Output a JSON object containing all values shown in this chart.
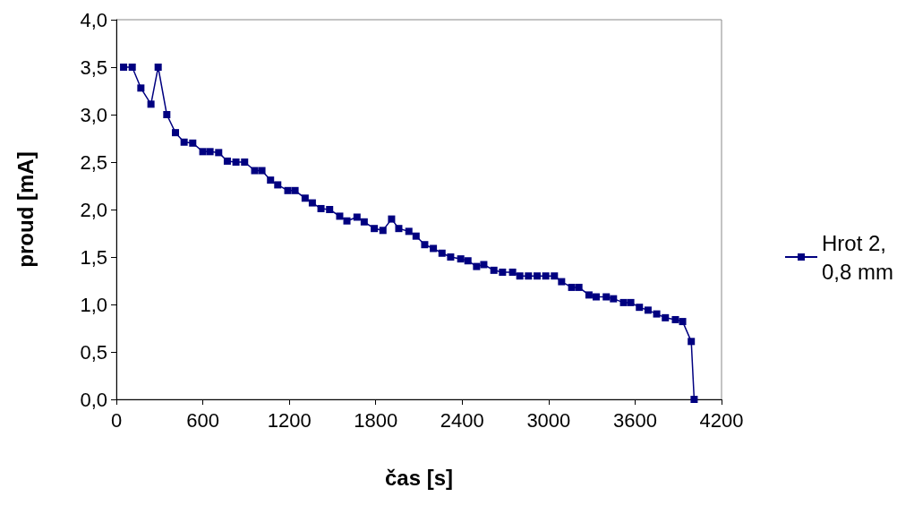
{
  "chart_data": {
    "type": "line",
    "xlabel": "čas [s]",
    "ylabel": "proud [mA]",
    "xlim": [
      0,
      4200
    ],
    "xticks": [
      0,
      600,
      1200,
      1800,
      2400,
      3000,
      3600,
      4200
    ],
    "ylim": [
      0,
      4
    ],
    "yticks": [
      {
        "value": 0,
        "label": "0,0"
      },
      {
        "value": 0.5,
        "label": "0,5"
      },
      {
        "value": 1,
        "label": "1,0"
      },
      {
        "value": 1.5,
        "label": "1,5"
      },
      {
        "value": 2,
        "label": "2,0"
      },
      {
        "value": 2.5,
        "label": "2,5"
      },
      {
        "value": 3,
        "label": "3,0"
      },
      {
        "value": 3.5,
        "label": "3,5"
      },
      {
        "value": 4,
        "label": "4,0"
      }
    ],
    "grid": false,
    "legend": "right",
    "marker": "square",
    "line_style": "solid",
    "series": [
      {
        "name": "Hrot 2, 0,8 mm",
        "color": "#000080",
        "x": [
          50,
          110,
          170,
          240,
          290,
          350,
          410,
          470,
          530,
          600,
          650,
          710,
          770,
          830,
          890,
          960,
          1010,
          1070,
          1120,
          1190,
          1240,
          1310,
          1360,
          1420,
          1480,
          1550,
          1600,
          1670,
          1720,
          1790,
          1850,
          1910,
          1960,
          2030,
          2080,
          2140,
          2200,
          2260,
          2320,
          2390,
          2440,
          2500,
          2550,
          2620,
          2680,
          2750,
          2800,
          2860,
          2920,
          2980,
          3040,
          3090,
          3160,
          3210,
          3280,
          3330,
          3400,
          3450,
          3520,
          3570,
          3630,
          3690,
          3750,
          3810,
          3880,
          3930,
          3990,
          4010
        ],
        "values": [
          3.5,
          3.5,
          3.28,
          3.11,
          3.5,
          3.0,
          2.81,
          2.71,
          2.7,
          2.61,
          2.61,
          2.6,
          2.51,
          2.5,
          2.5,
          2.41,
          2.41,
          2.31,
          2.26,
          2.2,
          2.2,
          2.12,
          2.07,
          2.01,
          2.0,
          1.93,
          1.88,
          1.92,
          1.87,
          1.8,
          1.78,
          1.9,
          1.8,
          1.77,
          1.72,
          1.63,
          1.59,
          1.54,
          1.5,
          1.48,
          1.46,
          1.4,
          1.42,
          1.36,
          1.34,
          1.34,
          1.3,
          1.3,
          1.3,
          1.3,
          1.3,
          1.24,
          1.18,
          1.18,
          1.1,
          1.08,
          1.08,
          1.06,
          1.02,
          1.02,
          0.97,
          0.94,
          0.9,
          0.86,
          0.84,
          0.82,
          0.61,
          0.0
        ]
      }
    ]
  }
}
